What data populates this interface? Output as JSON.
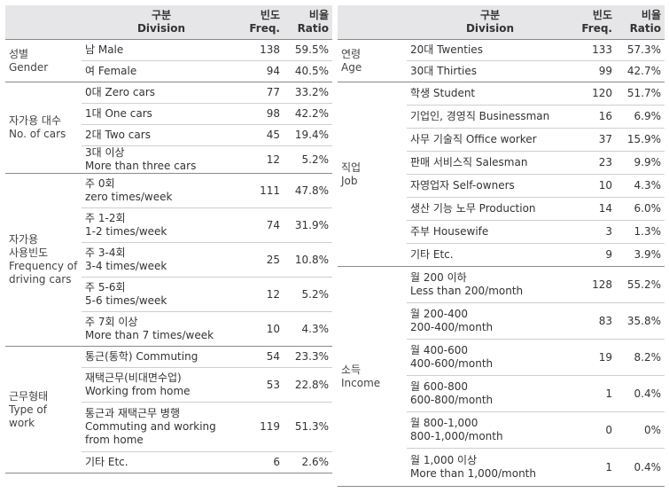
{
  "header": {
    "division_ko": "구분",
    "division_en": "Division",
    "freq_ko": "빈도",
    "freq_en": "Freq.",
    "ratio_ko": "비율",
    "ratio_en": "Ratio"
  },
  "left_groups": [
    {
      "category": [
        "성별",
        "Gender"
      ],
      "rows": [
        {
          "label": [
            "남 Male"
          ],
          "freq": "138",
          "ratio": "59.5%"
        },
        {
          "label": [
            "여 Female"
          ],
          "freq": "94",
          "ratio": "40.5%"
        }
      ]
    },
    {
      "category": [
        "자가용 대수",
        "No. of cars"
      ],
      "rows": [
        {
          "label": [
            "0대 Zero cars"
          ],
          "freq": "77",
          "ratio": "33.2%"
        },
        {
          "label": [
            "1대 One cars"
          ],
          "freq": "98",
          "ratio": "42.2%"
        },
        {
          "label": [
            "2대 Two cars"
          ],
          "freq": "45",
          "ratio": "19.4%"
        },
        {
          "label": [
            "3대 이상",
            "More than three cars"
          ],
          "freq": "12",
          "ratio": "5.2%"
        }
      ]
    },
    {
      "category": [
        "자가용",
        "사용빈도",
        "Frequency of",
        "driving cars"
      ],
      "rows": [
        {
          "label": [
            "주 0회",
            "zero times/week"
          ],
          "freq": "111",
          "ratio": "47.8%"
        },
        {
          "label": [
            "주 1-2회",
            "1-2 times/week"
          ],
          "freq": "74",
          "ratio": "31.9%"
        },
        {
          "label": [
            "주 3-4회",
            "3-4 times/week"
          ],
          "freq": "25",
          "ratio": "10.8%"
        },
        {
          "label": [
            "주 5-6회",
            "5-6 times/week"
          ],
          "freq": "12",
          "ratio": "5.2%"
        },
        {
          "label": [
            "주 7회 이상",
            "More than 7 times/week"
          ],
          "freq": "10",
          "ratio": "4.3%"
        }
      ]
    },
    {
      "category": [
        "근무형태",
        "Type of",
        "work"
      ],
      "rows": [
        {
          "label": [
            "통근(통학) Commuting"
          ],
          "freq": "54",
          "ratio": "23.3%"
        },
        {
          "label": [
            "재택근무(비대면수업)",
            "Working from home"
          ],
          "freq": "53",
          "ratio": "22.8%"
        },
        {
          "label": [
            "통근과 재택근무 병행",
            "Commuting and working",
            "from home"
          ],
          "freq": "119",
          "ratio": "51.3%"
        },
        {
          "label": [
            "기타 Etc."
          ],
          "freq": "6",
          "ratio": "2.6%"
        }
      ]
    }
  ],
  "right_groups": [
    {
      "category": [
        "연령",
        "Age"
      ],
      "rows": [
        {
          "label": [
            "20대 Twenties"
          ],
          "freq": "133",
          "ratio": "57.3%"
        },
        {
          "label": [
            "30대 Thirties"
          ],
          "freq": "99",
          "ratio": "42.7%"
        }
      ]
    },
    {
      "category": [
        "직업",
        "Job"
      ],
      "rows": [
        {
          "label": [
            "학생 Student"
          ],
          "freq": "120",
          "ratio": "51.7%"
        },
        {
          "label": [
            "기업인, 경영직 Businessman"
          ],
          "freq": "16",
          "ratio": "6.9%"
        },
        {
          "label": [
            "사무 기술직 Office worker"
          ],
          "freq": "37",
          "ratio": "15.9%"
        },
        {
          "label": [
            "판매 서비스직 Salesman"
          ],
          "freq": "23",
          "ratio": "9.9%"
        },
        {
          "label": [
            "자영업자 Self-owners"
          ],
          "freq": "10",
          "ratio": "4.3%"
        },
        {
          "label": [
            "생산 기능 노무 Production"
          ],
          "freq": "14",
          "ratio": "6.0%"
        },
        {
          "label": [
            "주부 Housewife"
          ],
          "freq": "3",
          "ratio": "1.3%"
        },
        {
          "label": [
            "기타 Etc."
          ],
          "freq": "9",
          "ratio": "3.9%"
        }
      ]
    },
    {
      "category": [
        "소득",
        "Income"
      ],
      "rows": [
        {
          "label": [
            "월 200 이하",
            "Less than 200/month"
          ],
          "freq": "128",
          "ratio": "55.2%"
        },
        {
          "label": [
            "월 200-400",
            "200-400/month"
          ],
          "freq": "83",
          "ratio": "35.8%"
        },
        {
          "label": [
            "월 400-600",
            "400-600/month"
          ],
          "freq": "19",
          "ratio": "8.2%"
        },
        {
          "label": [
            "월 600-800",
            "600-800/month"
          ],
          "freq": "1",
          "ratio": "0.4%"
        },
        {
          "label": [
            "월 800-1,000",
            "800-1,000/month"
          ],
          "freq": "0",
          "ratio": "0%"
        },
        {
          "label": [
            "월 1,000 이상",
            "More than 1,000/month"
          ],
          "freq": "1",
          "ratio": "0.4%"
        }
      ]
    }
  ]
}
